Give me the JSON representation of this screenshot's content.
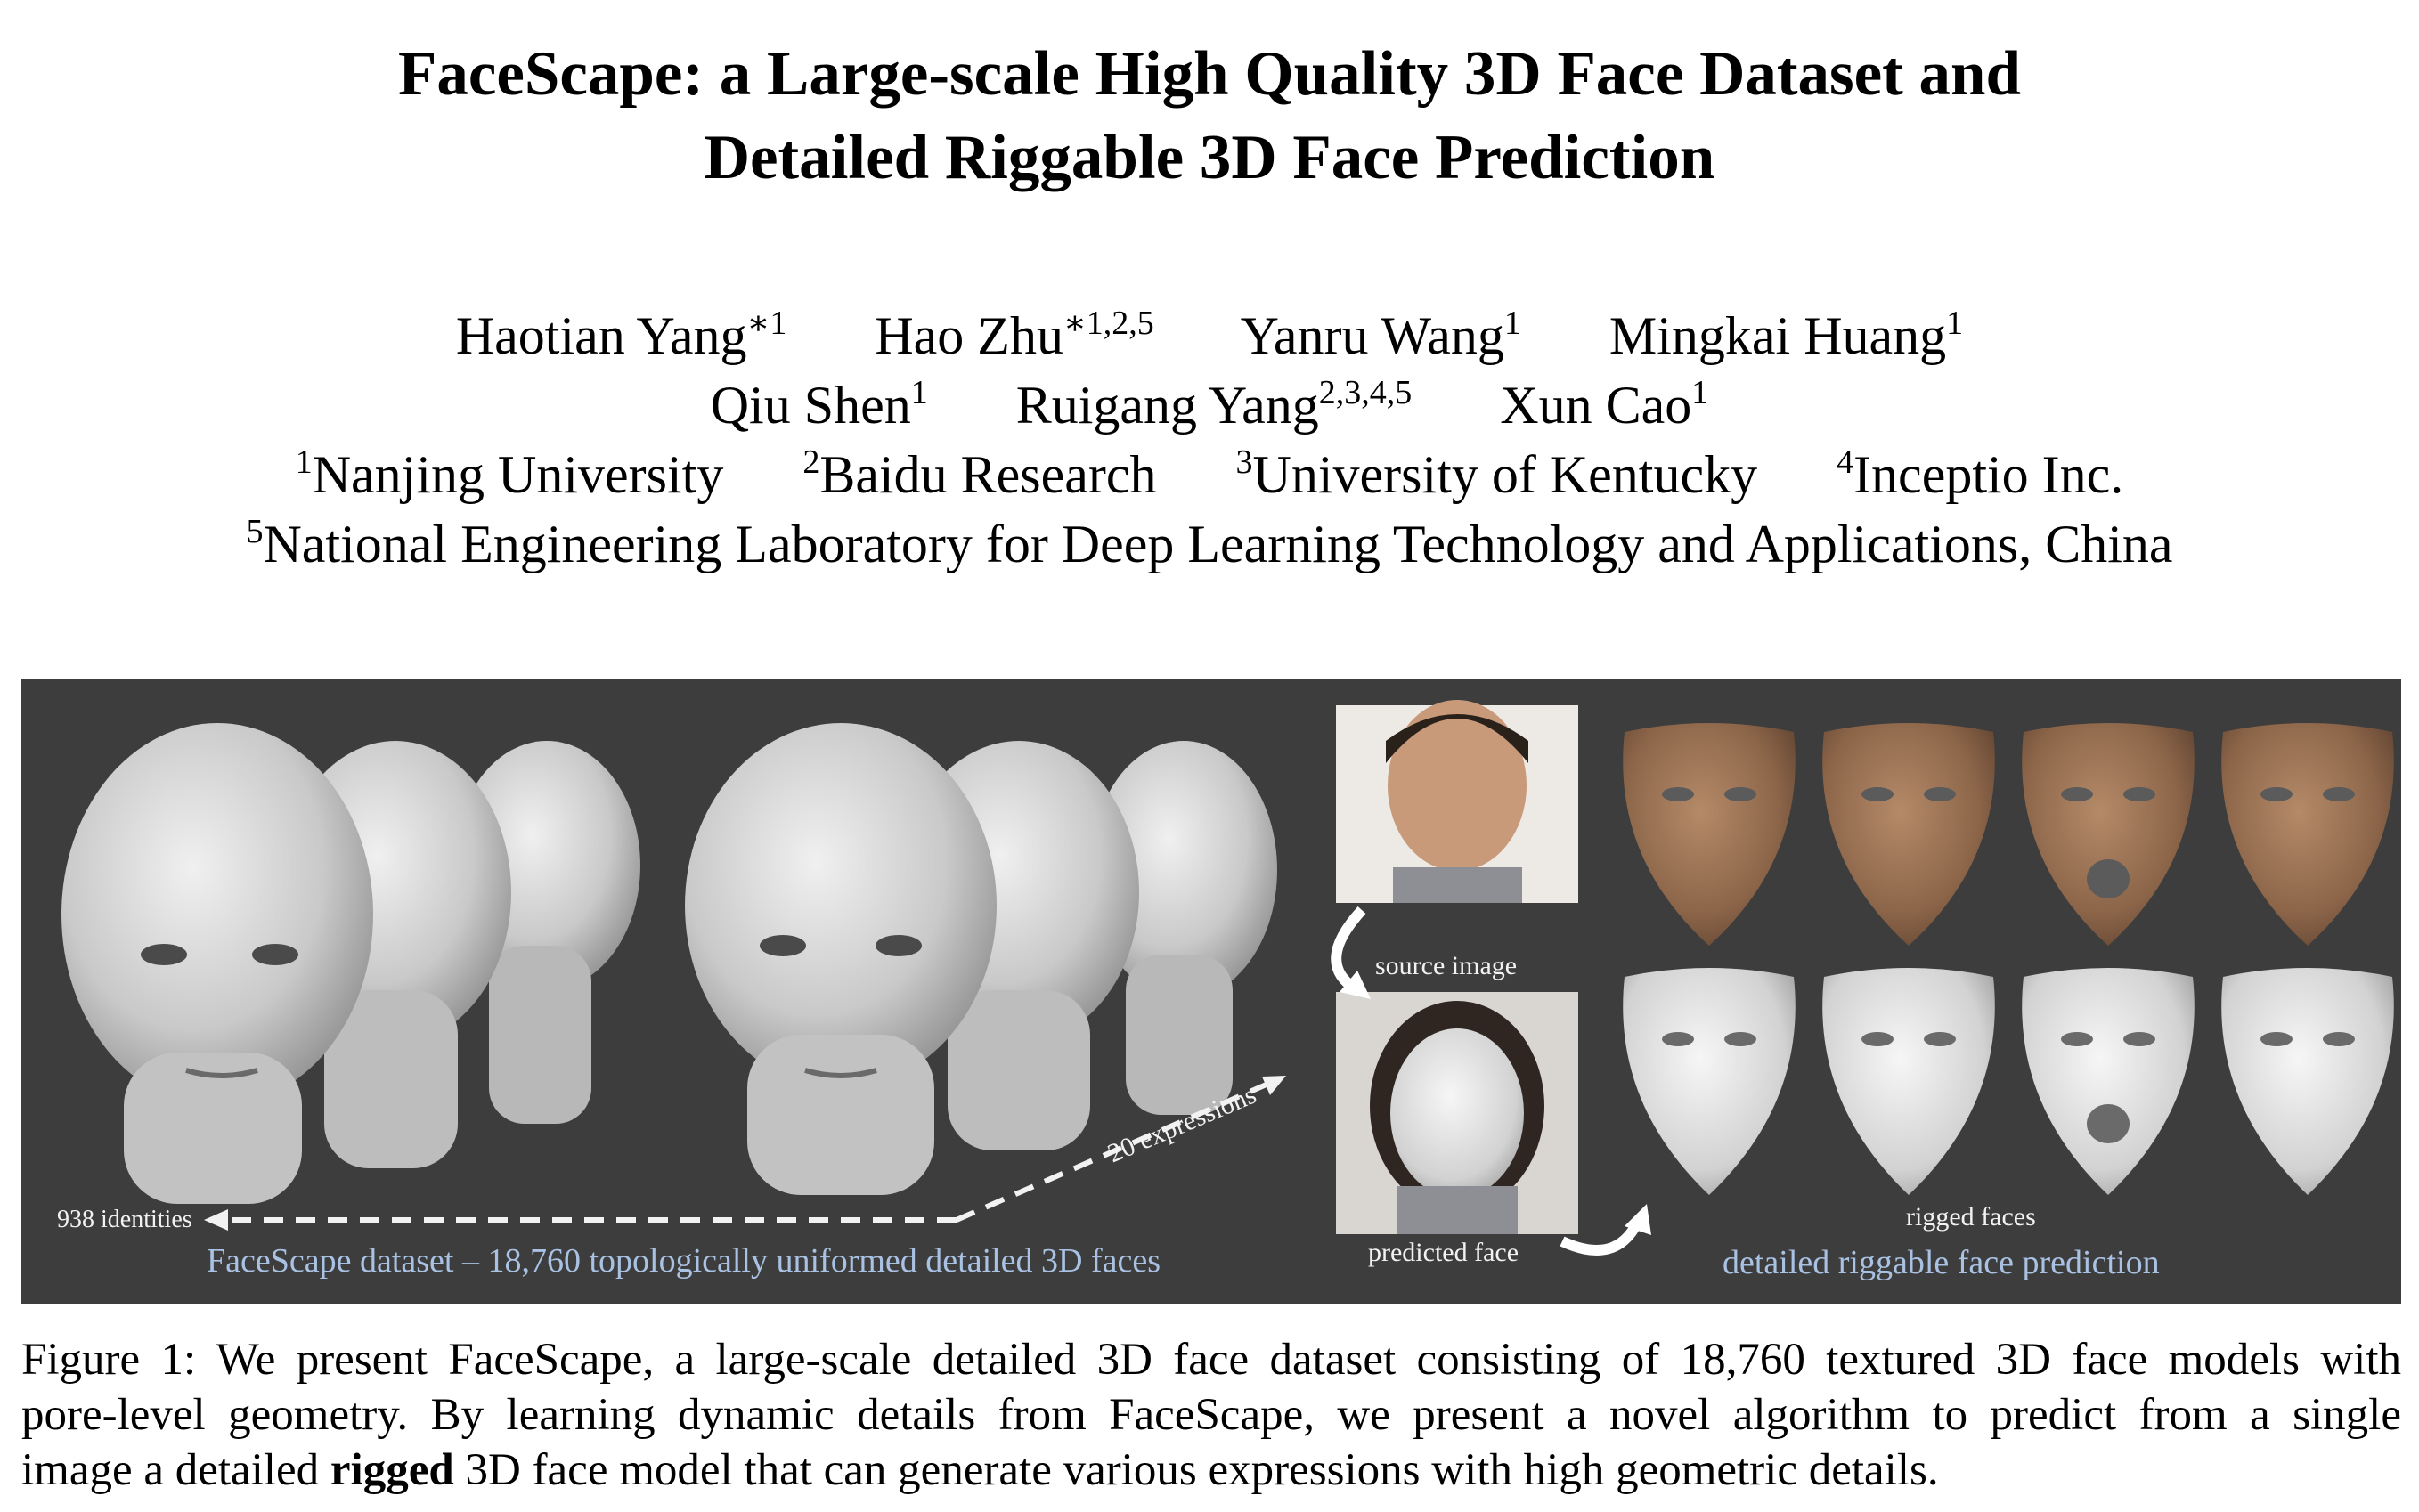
{
  "title": {
    "line1": "FaceScape: a Large-scale High Quality 3D Face Dataset and",
    "line2": "Detailed Riggable 3D Face Prediction"
  },
  "authors": [
    {
      "name": "Haotian Yang",
      "sup": "∗1"
    },
    {
      "name": "Hao Zhu",
      "sup": "∗1,2,5"
    },
    {
      "name": "Yanru Wang",
      "sup": "1"
    },
    {
      "name": "Mingkai Huang",
      "sup": "1"
    },
    {
      "name": "Qiu Shen",
      "sup": "1"
    },
    {
      "name": "Ruigang Yang",
      "sup": "2,3,4,5"
    },
    {
      "name": "Xun Cao",
      "sup": "1"
    }
  ],
  "affiliations": [
    {
      "sup": "1",
      "name": "Nanjing University"
    },
    {
      "sup": "2",
      "name": "Baidu Research"
    },
    {
      "sup": "3",
      "name": "University of Kentucky"
    },
    {
      "sup": "4",
      "name": "Inceptio Inc."
    },
    {
      "sup": "5",
      "name": "National Engineering Laboratory for Deep Learning Technology and Applications, China"
    }
  ],
  "figure": {
    "label_identities": "938 identities",
    "label_expressions": "20 expressions",
    "label_dataset": "FaceScape dataset – 18,760 topologically uniformed detailed 3D faces",
    "label_source": "source image",
    "label_predicted": "predicted face",
    "label_rigged": "rigged faces",
    "label_prediction": "detailed riggable face prediction",
    "colors": {
      "background": "#3d3d3d",
      "blue_text": "#a9c1e2",
      "skin": "#9a7558",
      "mesh": "#d9d9d9"
    }
  },
  "caption": {
    "line1": "Figure 1: We present FaceScape, a large-scale detailed 3D face dataset consisting of 18,760 textured 3D face models with",
    "line2": "pore-level geometry.  By learning dynamic details from FaceScape, we present a novel algorithm to predict from a single",
    "line3_pre": "image a detailed ",
    "line3_bold": "rigged",
    "line3_post": " 3D face model that can generate various expressions with high geometric details."
  }
}
